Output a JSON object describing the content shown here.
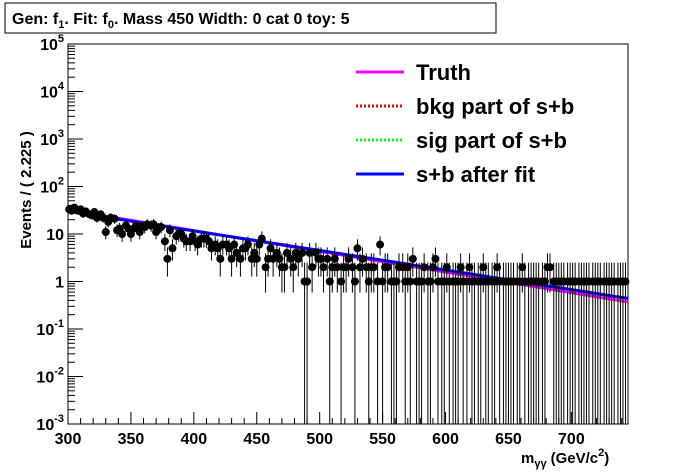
{
  "title": "Gen: f1. Fit: f0. Mass 450  Width: 0 cat 0  toy: 5",
  "title_parts": {
    "gen": "Gen: f",
    "gen_sub": "1",
    "fit": ". Fit: f",
    "fit_sub": "0",
    "rest": ". Mass 450  Width: 0 cat 0  toy: 5"
  },
  "chart_data": {
    "type": "scatter",
    "title": "Gen: f1. Fit: f0. Mass 450  Width: 0 cat 0  toy: 5",
    "xlabel": "m_γγ (GeV/c²)",
    "xlabel_parts": {
      "m": "m",
      "sub": "γγ",
      "unit": "(GeV/c",
      "pow": "2",
      "close": ")"
    },
    "ylabel": "Events / ( 2.225 )",
    "xlim": [
      300,
      745
    ],
    "ylim": [
      0.001,
      100000
    ],
    "y_scale": "log",
    "x_ticks": [
      300,
      350,
      400,
      450,
      500,
      550,
      600,
      650,
      700
    ],
    "y_ticks": [
      {
        "value": 0.001,
        "base": "10",
        "exp": "-3"
      },
      {
        "value": 0.01,
        "base": "10",
        "exp": "-2"
      },
      {
        "value": 0.1,
        "base": "10",
        "exp": "-1"
      },
      {
        "value": 1,
        "base": "1",
        "exp": ""
      },
      {
        "value": 10,
        "base": "10",
        "exp": ""
      },
      {
        "value": 100,
        "base": "10",
        "exp": "2"
      },
      {
        "value": 1000,
        "base": "10",
        "exp": "3"
      },
      {
        "value": 10000,
        "base": "10",
        "exp": "4"
      },
      {
        "value": 100000,
        "base": "10",
        "exp": "5"
      }
    ],
    "grid": false,
    "legend_position": "top-right",
    "series": [
      {
        "name": "Truth",
        "color": "#ff00ff",
        "style": "solid",
        "curve": [
          [
            300,
            32
          ],
          [
            745,
            0.37
          ]
        ]
      },
      {
        "name": "bkg part of s+b",
        "color": "#ff0000",
        "style": "dotted",
        "curve": [
          [
            300,
            30
          ],
          [
            745,
            0.44
          ]
        ]
      },
      {
        "name": "sig part of s+b",
        "color": "#00ff00",
        "style": "dotted",
        "curve": []
      },
      {
        "name": "s+b after fit",
        "color": "#0000ff",
        "style": "solid",
        "curve": [
          [
            300,
            30
          ],
          [
            745,
            0.44
          ]
        ]
      }
    ],
    "points": [
      [
        301,
        33
      ],
      [
        303,
        31
      ],
      [
        305,
        36
      ],
      [
        308,
        31
      ],
      [
        310,
        33
      ],
      [
        312,
        27
      ],
      [
        314,
        30
      ],
      [
        317,
        26
      ],
      [
        319,
        25
      ],
      [
        321,
        29
      ],
      [
        323,
        22
      ],
      [
        326,
        26
      ],
      [
        328,
        22
      ],
      [
        330,
        11
      ],
      [
        332,
        18
      ],
      [
        334,
        22
      ],
      [
        337,
        21
      ],
      [
        339,
        12
      ],
      [
        341,
        13
      ],
      [
        343,
        10
      ],
      [
        346,
        15
      ],
      [
        348,
        13
      ],
      [
        350,
        10
      ],
      [
        352,
        13
      ],
      [
        354,
        15
      ],
      [
        357,
        11
      ],
      [
        359,
        14
      ],
      [
        361,
        14
      ],
      [
        363,
        16
      ],
      [
        366,
        15
      ],
      [
        368,
        16
      ],
      [
        370,
        11
      ],
      [
        372,
        13
      ],
      [
        374,
        14
      ],
      [
        377,
        7
      ],
      [
        379,
        3
      ],
      [
        381,
        12
      ],
      [
        383,
        5
      ],
      [
        386,
        9
      ],
      [
        388,
        10
      ],
      [
        390,
        10
      ],
      [
        392,
        8
      ],
      [
        394,
        7
      ],
      [
        397,
        7
      ],
      [
        399,
        9
      ],
      [
        401,
        7
      ],
      [
        403,
        6
      ],
      [
        406,
        8
      ],
      [
        408,
        8
      ],
      [
        410,
        8
      ],
      [
        412,
        7
      ],
      [
        414,
        5
      ],
      [
        417,
        6
      ],
      [
        419,
        5
      ],
      [
        421,
        3
      ],
      [
        423,
        6
      ],
      [
        426,
        6
      ],
      [
        428,
        5
      ],
      [
        430,
        3
      ],
      [
        432,
        6
      ],
      [
        434,
        4
      ],
      [
        437,
        3
      ],
      [
        439,
        5
      ],
      [
        441,
        5
      ],
      [
        443,
        6
      ],
      [
        446,
        3
      ],
      [
        448,
        4
      ],
      [
        450,
        3
      ],
      [
        452,
        6
      ],
      [
        454,
        8
      ],
      [
        457,
        2
      ],
      [
        459,
        3
      ],
      [
        461,
        5
      ],
      [
        463,
        3
      ],
      [
        466,
        4
      ],
      [
        468,
        3
      ],
      [
        470,
        2
      ],
      [
        472,
        2
      ],
      [
        474,
        4
      ],
      [
        477,
        3
      ],
      [
        479,
        2
      ],
      [
        481,
        4
      ],
      [
        483,
        3
      ],
      [
        486,
        4
      ],
      [
        488,
        1
      ],
      [
        490,
        1
      ],
      [
        492,
        4
      ],
      [
        494,
        2
      ],
      [
        497,
        4
      ],
      [
        499,
        3
      ],
      [
        501,
        3
      ],
      [
        503,
        2
      ],
      [
        506,
        3
      ],
      [
        508,
        1
      ],
      [
        510,
        2
      ],
      [
        512,
        3
      ],
      [
        514,
        2
      ],
      [
        517,
        1
      ],
      [
        519,
        2
      ],
      [
        521,
        2
      ],
      [
        523,
        3
      ],
      [
        526,
        2
      ],
      [
        528,
        1
      ],
      [
        530,
        5
      ],
      [
        532,
        2
      ],
      [
        534,
        3
      ],
      [
        537,
        2
      ],
      [
        539,
        1
      ],
      [
        541,
        2
      ],
      [
        543,
        2
      ],
      [
        546,
        1
      ],
      [
        548,
        6
      ],
      [
        550,
        1
      ],
      [
        552,
        2
      ],
      [
        554,
        2
      ],
      [
        557,
        1
      ],
      [
        559,
        1
      ],
      [
        561,
        1
      ],
      [
        563,
        2
      ],
      [
        566,
        2
      ],
      [
        568,
        1
      ],
      [
        570,
        2
      ],
      [
        572,
        1
      ],
      [
        574,
        3
      ],
      [
        577,
        1
      ],
      [
        579,
        1
      ],
      [
        581,
        1
      ],
      [
        583,
        2
      ],
      [
        586,
        1
      ],
      [
        588,
        1
      ],
      [
        590,
        2
      ],
      [
        592,
        3
      ],
      [
        594,
        1
      ],
      [
        597,
        1
      ],
      [
        599,
        1
      ],
      [
        601,
        2
      ],
      [
        603,
        1
      ],
      [
        606,
        1
      ],
      [
        608,
        1
      ],
      [
        610,
        1
      ],
      [
        612,
        2
      ],
      [
        614,
        1
      ],
      [
        617,
        1
      ],
      [
        619,
        2
      ],
      [
        621,
        1
      ],
      [
        623,
        1
      ],
      [
        626,
        1
      ],
      [
        628,
        1
      ],
      [
        630,
        2
      ],
      [
        632,
        1
      ],
      [
        634,
        1
      ],
      [
        637,
        1
      ],
      [
        639,
        1
      ],
      [
        641,
        2
      ],
      [
        643,
        1
      ],
      [
        646,
        1
      ],
      [
        648,
        1
      ],
      [
        650,
        1
      ],
      [
        652,
        1
      ],
      [
        654,
        1
      ],
      [
        657,
        1
      ],
      [
        659,
        1
      ],
      [
        661,
        2
      ],
      [
        663,
        1
      ],
      [
        666,
        1
      ],
      [
        668,
        1
      ],
      [
        670,
        1
      ],
      [
        672,
        1
      ],
      [
        674,
        1
      ],
      [
        677,
        1
      ],
      [
        679,
        1
      ],
      [
        681,
        2
      ],
      [
        683,
        2
      ],
      [
        686,
        1
      ],
      [
        688,
        1
      ],
      [
        690,
        1
      ],
      [
        692,
        1
      ],
      [
        694,
        1
      ],
      [
        697,
        1
      ],
      [
        699,
        1
      ],
      [
        701,
        1
      ],
      [
        703,
        1
      ],
      [
        706,
        1
      ],
      [
        708,
        1
      ],
      [
        710,
        1
      ],
      [
        712,
        1
      ],
      [
        714,
        1
      ],
      [
        717,
        1
      ],
      [
        719,
        1
      ],
      [
        721,
        1
      ],
      [
        723,
        1
      ],
      [
        726,
        1
      ],
      [
        728,
        1
      ],
      [
        730,
        1
      ],
      [
        732,
        1
      ],
      [
        734,
        1
      ],
      [
        737,
        1
      ],
      [
        739,
        1
      ],
      [
        741,
        1
      ],
      [
        743,
        1
      ]
    ]
  }
}
